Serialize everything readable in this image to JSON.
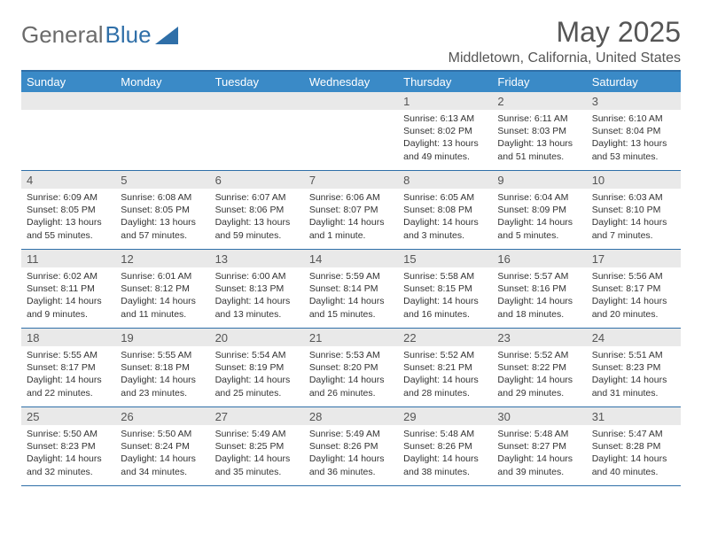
{
  "logo": {
    "textA": "General",
    "textB": "Blue"
  },
  "title": "May 2025",
  "location": "Middletown, California, United States",
  "headers": [
    "Sunday",
    "Monday",
    "Tuesday",
    "Wednesday",
    "Thursday",
    "Friday",
    "Saturday"
  ],
  "colors": {
    "header_bg": "#3a8ac7",
    "border": "#2f6fa8",
    "daynum_bg": "#e9e9e9",
    "text": "#333333",
    "title": "#555555"
  },
  "weeks": [
    [
      {
        "n": "",
        "sr": "",
        "ss": "",
        "d1": "",
        "d2": ""
      },
      {
        "n": "",
        "sr": "",
        "ss": "",
        "d1": "",
        "d2": ""
      },
      {
        "n": "",
        "sr": "",
        "ss": "",
        "d1": "",
        "d2": ""
      },
      {
        "n": "",
        "sr": "",
        "ss": "",
        "d1": "",
        "d2": ""
      },
      {
        "n": "1",
        "sr": "Sunrise: 6:13 AM",
        "ss": "Sunset: 8:02 PM",
        "d1": "Daylight: 13 hours",
        "d2": "and 49 minutes."
      },
      {
        "n": "2",
        "sr": "Sunrise: 6:11 AM",
        "ss": "Sunset: 8:03 PM",
        "d1": "Daylight: 13 hours",
        "d2": "and 51 minutes."
      },
      {
        "n": "3",
        "sr": "Sunrise: 6:10 AM",
        "ss": "Sunset: 8:04 PM",
        "d1": "Daylight: 13 hours",
        "d2": "and 53 minutes."
      }
    ],
    [
      {
        "n": "4",
        "sr": "Sunrise: 6:09 AM",
        "ss": "Sunset: 8:05 PM",
        "d1": "Daylight: 13 hours",
        "d2": "and 55 minutes."
      },
      {
        "n": "5",
        "sr": "Sunrise: 6:08 AM",
        "ss": "Sunset: 8:05 PM",
        "d1": "Daylight: 13 hours",
        "d2": "and 57 minutes."
      },
      {
        "n": "6",
        "sr": "Sunrise: 6:07 AM",
        "ss": "Sunset: 8:06 PM",
        "d1": "Daylight: 13 hours",
        "d2": "and 59 minutes."
      },
      {
        "n": "7",
        "sr": "Sunrise: 6:06 AM",
        "ss": "Sunset: 8:07 PM",
        "d1": "Daylight: 14 hours",
        "d2": "and 1 minute."
      },
      {
        "n": "8",
        "sr": "Sunrise: 6:05 AM",
        "ss": "Sunset: 8:08 PM",
        "d1": "Daylight: 14 hours",
        "d2": "and 3 minutes."
      },
      {
        "n": "9",
        "sr": "Sunrise: 6:04 AM",
        "ss": "Sunset: 8:09 PM",
        "d1": "Daylight: 14 hours",
        "d2": "and 5 minutes."
      },
      {
        "n": "10",
        "sr": "Sunrise: 6:03 AM",
        "ss": "Sunset: 8:10 PM",
        "d1": "Daylight: 14 hours",
        "d2": "and 7 minutes."
      }
    ],
    [
      {
        "n": "11",
        "sr": "Sunrise: 6:02 AM",
        "ss": "Sunset: 8:11 PM",
        "d1": "Daylight: 14 hours",
        "d2": "and 9 minutes."
      },
      {
        "n": "12",
        "sr": "Sunrise: 6:01 AM",
        "ss": "Sunset: 8:12 PM",
        "d1": "Daylight: 14 hours",
        "d2": "and 11 minutes."
      },
      {
        "n": "13",
        "sr": "Sunrise: 6:00 AM",
        "ss": "Sunset: 8:13 PM",
        "d1": "Daylight: 14 hours",
        "d2": "and 13 minutes."
      },
      {
        "n": "14",
        "sr": "Sunrise: 5:59 AM",
        "ss": "Sunset: 8:14 PM",
        "d1": "Daylight: 14 hours",
        "d2": "and 15 minutes."
      },
      {
        "n": "15",
        "sr": "Sunrise: 5:58 AM",
        "ss": "Sunset: 8:15 PM",
        "d1": "Daylight: 14 hours",
        "d2": "and 16 minutes."
      },
      {
        "n": "16",
        "sr": "Sunrise: 5:57 AM",
        "ss": "Sunset: 8:16 PM",
        "d1": "Daylight: 14 hours",
        "d2": "and 18 minutes."
      },
      {
        "n": "17",
        "sr": "Sunrise: 5:56 AM",
        "ss": "Sunset: 8:17 PM",
        "d1": "Daylight: 14 hours",
        "d2": "and 20 minutes."
      }
    ],
    [
      {
        "n": "18",
        "sr": "Sunrise: 5:55 AM",
        "ss": "Sunset: 8:17 PM",
        "d1": "Daylight: 14 hours",
        "d2": "and 22 minutes."
      },
      {
        "n": "19",
        "sr": "Sunrise: 5:55 AM",
        "ss": "Sunset: 8:18 PM",
        "d1": "Daylight: 14 hours",
        "d2": "and 23 minutes."
      },
      {
        "n": "20",
        "sr": "Sunrise: 5:54 AM",
        "ss": "Sunset: 8:19 PM",
        "d1": "Daylight: 14 hours",
        "d2": "and 25 minutes."
      },
      {
        "n": "21",
        "sr": "Sunrise: 5:53 AM",
        "ss": "Sunset: 8:20 PM",
        "d1": "Daylight: 14 hours",
        "d2": "and 26 minutes."
      },
      {
        "n": "22",
        "sr": "Sunrise: 5:52 AM",
        "ss": "Sunset: 8:21 PM",
        "d1": "Daylight: 14 hours",
        "d2": "and 28 minutes."
      },
      {
        "n": "23",
        "sr": "Sunrise: 5:52 AM",
        "ss": "Sunset: 8:22 PM",
        "d1": "Daylight: 14 hours",
        "d2": "and 29 minutes."
      },
      {
        "n": "24",
        "sr": "Sunrise: 5:51 AM",
        "ss": "Sunset: 8:23 PM",
        "d1": "Daylight: 14 hours",
        "d2": "and 31 minutes."
      }
    ],
    [
      {
        "n": "25",
        "sr": "Sunrise: 5:50 AM",
        "ss": "Sunset: 8:23 PM",
        "d1": "Daylight: 14 hours",
        "d2": "and 32 minutes."
      },
      {
        "n": "26",
        "sr": "Sunrise: 5:50 AM",
        "ss": "Sunset: 8:24 PM",
        "d1": "Daylight: 14 hours",
        "d2": "and 34 minutes."
      },
      {
        "n": "27",
        "sr": "Sunrise: 5:49 AM",
        "ss": "Sunset: 8:25 PM",
        "d1": "Daylight: 14 hours",
        "d2": "and 35 minutes."
      },
      {
        "n": "28",
        "sr": "Sunrise: 5:49 AM",
        "ss": "Sunset: 8:26 PM",
        "d1": "Daylight: 14 hours",
        "d2": "and 36 minutes."
      },
      {
        "n": "29",
        "sr": "Sunrise: 5:48 AM",
        "ss": "Sunset: 8:26 PM",
        "d1": "Daylight: 14 hours",
        "d2": "and 38 minutes."
      },
      {
        "n": "30",
        "sr": "Sunrise: 5:48 AM",
        "ss": "Sunset: 8:27 PM",
        "d1": "Daylight: 14 hours",
        "d2": "and 39 minutes."
      },
      {
        "n": "31",
        "sr": "Sunrise: 5:47 AM",
        "ss": "Sunset: 8:28 PM",
        "d1": "Daylight: 14 hours",
        "d2": "and 40 minutes."
      }
    ]
  ]
}
